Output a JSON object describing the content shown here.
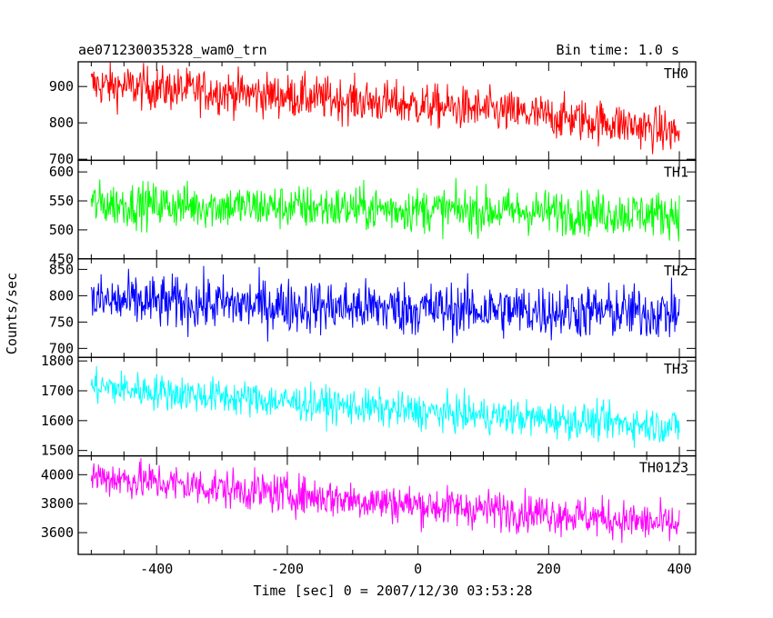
{
  "chart_data": {
    "type": "line",
    "title": "ae071230035328_wam0_trn",
    "subtitle": "Bin time: 1.0 s",
    "xlabel": "Time [sec] 0 = 2007/12/30 03:53:28",
    "ylabel": "Counts/sec",
    "xlim": [
      -520,
      425
    ],
    "xticks": [
      -400,
      -200,
      0,
      200,
      400
    ],
    "grid": false,
    "panels": [
      {
        "name": "TH0",
        "color": "#ff0000",
        "ylim": [
          697,
          968
        ],
        "yticks": [
          700,
          800,
          900
        ],
        "trend_x": [
          -500,
          -300,
          -100,
          100,
          300,
          400
        ],
        "trend_y": [
          905,
          885,
          862,
          835,
          800,
          772
        ],
        "spread": 42,
        "x_start": -500,
        "x_end": 400
      },
      {
        "name": "TH1",
        "color": "#00ff00",
        "ylim": [
          450,
          620
        ],
        "yticks": [
          450,
          500,
          550,
          600
        ],
        "trend_x": [
          -500,
          0,
          400
        ],
        "trend_y": [
          545,
          535,
          527
        ],
        "spread": 27,
        "x_start": -500,
        "x_end": 400
      },
      {
        "name": "TH2",
        "color": "#0000ff",
        "ylim": [
          683,
          870
        ],
        "yticks": [
          700,
          750,
          800,
          850
        ],
        "trend_x": [
          -500,
          0,
          400
        ],
        "trend_y": [
          790,
          775,
          767
        ],
        "spread": 36,
        "x_start": -500,
        "x_end": 400
      },
      {
        "name": "TH3",
        "color": "#00ffff",
        "ylim": [
          1482,
          1812
        ],
        "yticks": [
          1500,
          1600,
          1700,
          1800
        ],
        "trend_x": [
          -500,
          -300,
          0,
          200,
          400
        ],
        "trend_y": [
          1715,
          1680,
          1630,
          1605,
          1580
        ],
        "spread": 42,
        "x_start": -500,
        "x_end": 400
      },
      {
        "name": "TH0123",
        "color": "#ff00ff",
        "ylim": [
          3450,
          4130
        ],
        "yticks": [
          3600,
          3800,
          4000
        ],
        "trend_x": [
          -500,
          -300,
          0,
          200,
          400
        ],
        "trend_y": [
          3990,
          3905,
          3790,
          3735,
          3650
        ],
        "spread": 95,
        "x_start": -500,
        "x_end": 400
      }
    ]
  }
}
